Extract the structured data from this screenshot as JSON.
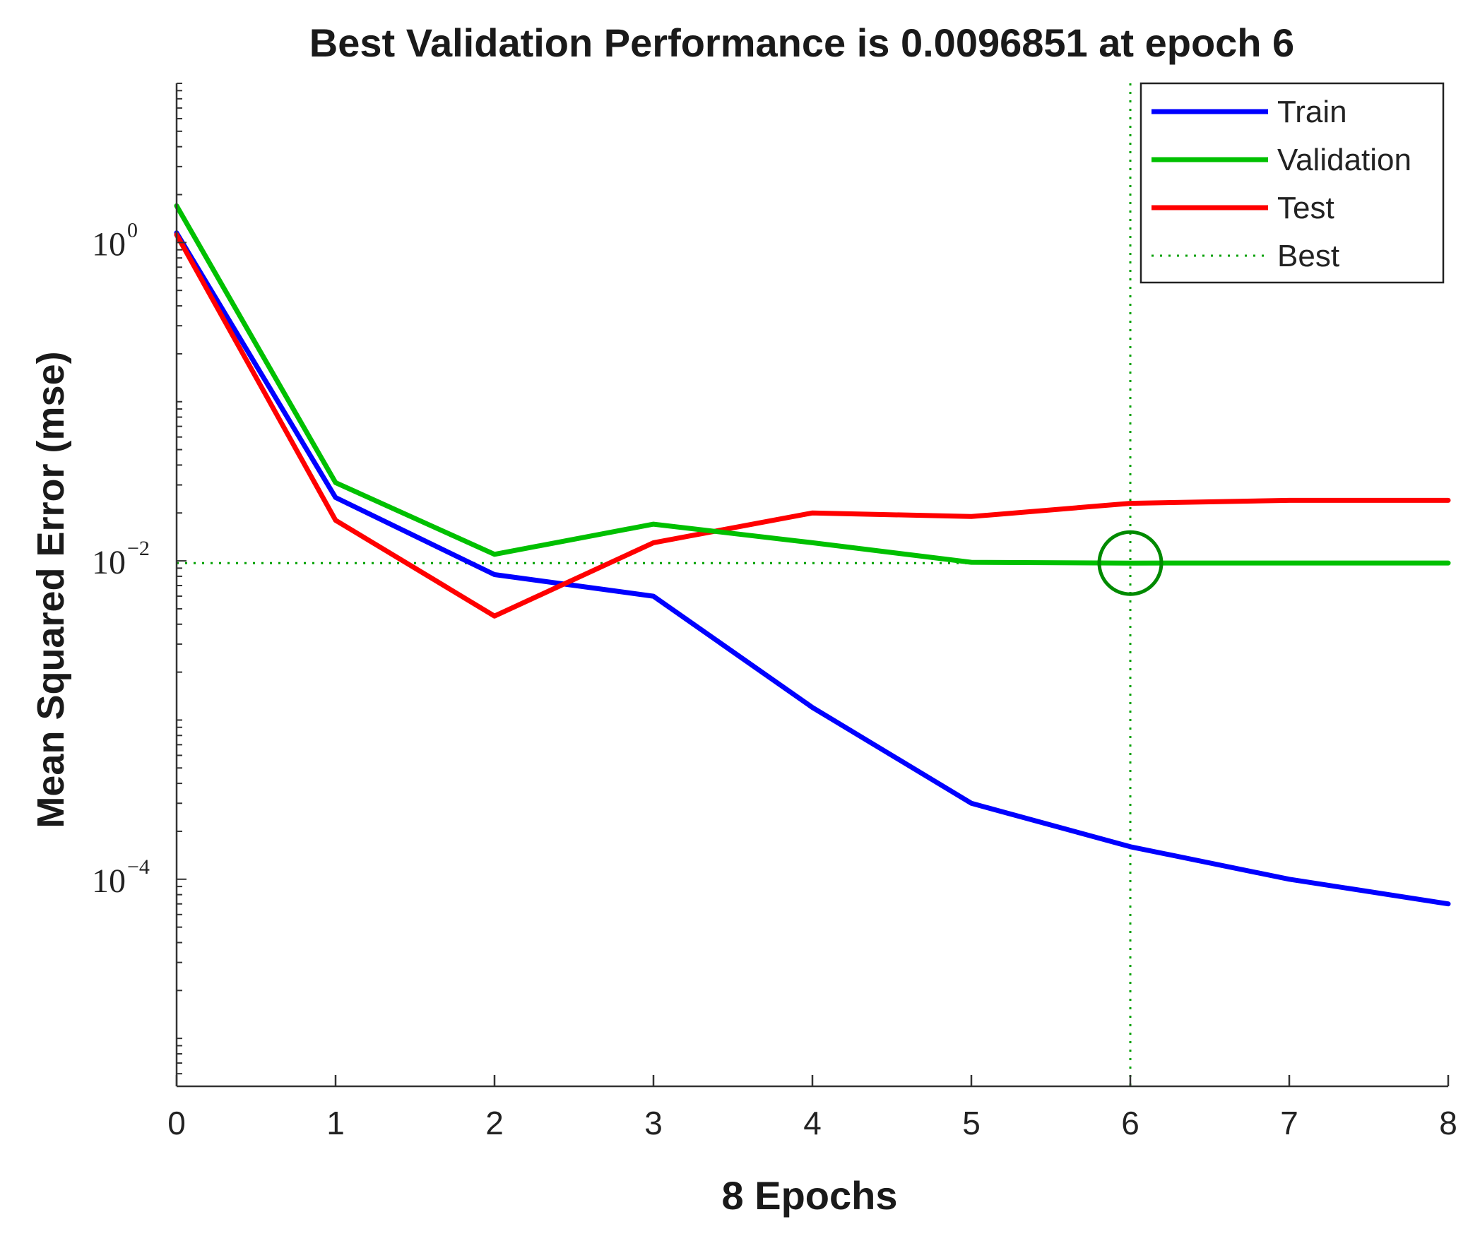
{
  "chart_data": {
    "type": "line",
    "title": "Best Validation Performance is 0.0096851 at epoch 6",
    "xlabel": "8 Epochs",
    "ylabel": "Mean Squared Error  (mse)",
    "xlim": [
      0,
      8
    ],
    "ylim": [
      5e-06,
      10
    ],
    "yscale": "log",
    "x_ticks": [
      0,
      1,
      2,
      3,
      4,
      5,
      6,
      7,
      8
    ],
    "y_ticks": [
      {
        "value": 1,
        "base": "10",
        "exp": "0"
      },
      {
        "value": 0.01,
        "base": "10",
        "exp": "−2"
      },
      {
        "value": 0.0001,
        "base": "10",
        "exp": "−4"
      }
    ],
    "x": [
      0,
      1,
      2,
      3,
      4,
      5,
      6,
      7,
      8
    ],
    "series": [
      {
        "name": "Train",
        "color": "#0000ff",
        "values": [
          1.15,
          0.025,
          0.0082,
          0.006,
          0.0012,
          0.0003,
          0.00016,
          0.0001,
          7e-05
        ]
      },
      {
        "name": "Validation",
        "color": "#00c000",
        "values": [
          1.7,
          0.031,
          0.011,
          0.017,
          0.013,
          0.0098,
          0.0096851,
          0.0097,
          0.0097
        ]
      },
      {
        "name": "Test",
        "color": "#ff0000",
        "values": [
          1.12,
          0.018,
          0.0045,
          0.013,
          0.02,
          0.019,
          0.023,
          0.024,
          0.024
        ]
      }
    ],
    "best": {
      "label": "Best",
      "epoch": 6,
      "value": 0.0096851,
      "color": "#00a000"
    },
    "legend_position": "top-right",
    "grid": false
  }
}
